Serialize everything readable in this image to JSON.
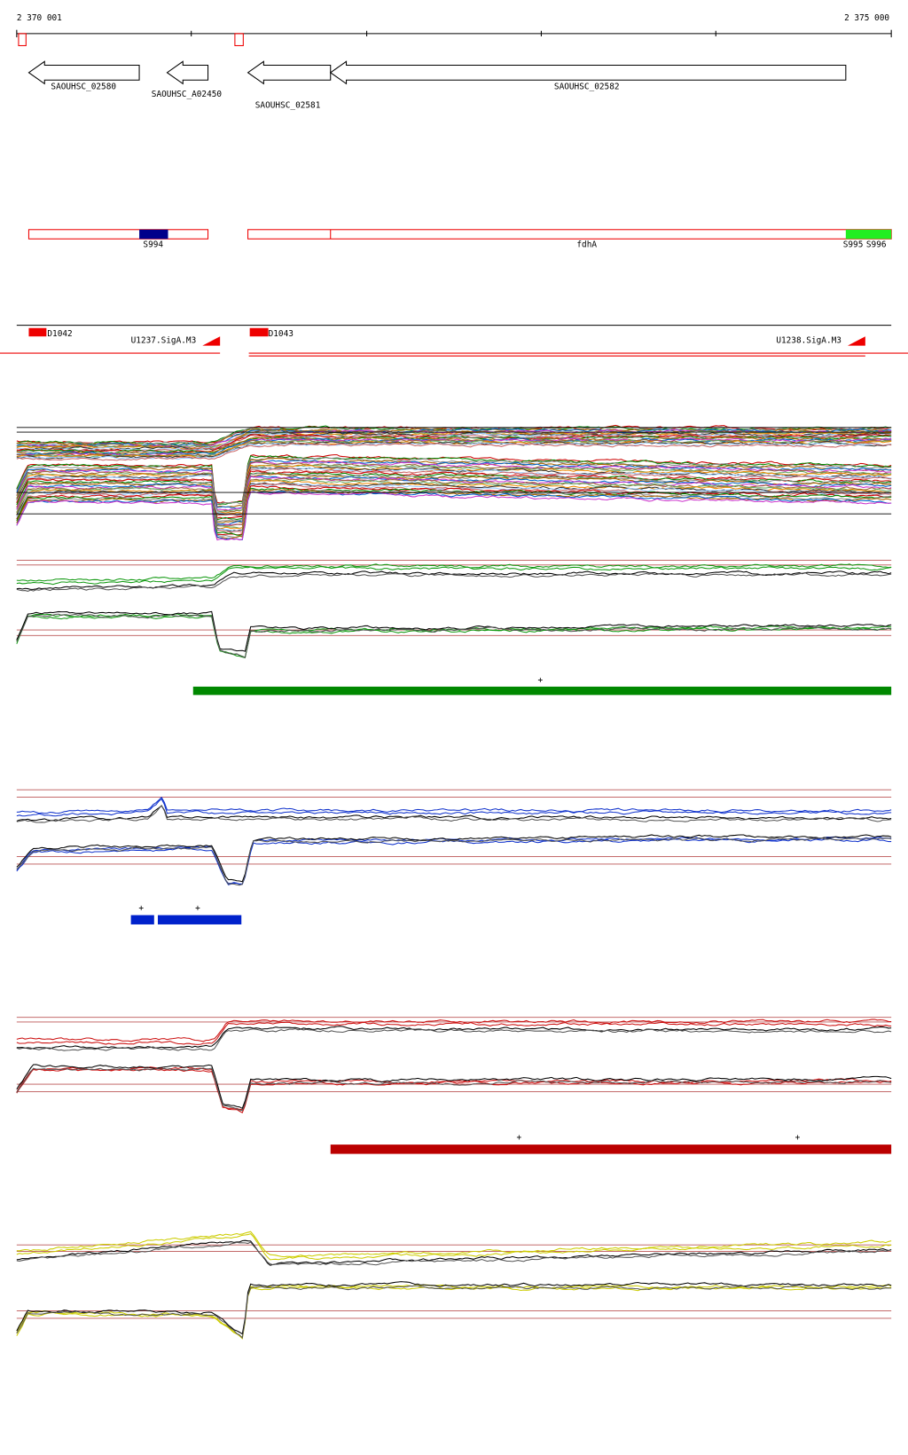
{
  "ruler": {
    "start": "2 370 001",
    "end": "2 375 000"
  },
  "genes": [
    "SAOUHSC_02580",
    "SAOUHSC_A02450",
    "SAOUHSC_02581",
    "SAOUHSC_02582"
  ],
  "features": [
    "S994",
    "fdhA",
    "S995",
    "S996"
  ],
  "regulatory": [
    "D1042",
    "U1237.SigA.M3",
    "D1043",
    "U1238.SigA.M3"
  ],
  "markers": {
    "green": [
      "+"
    ],
    "blue": [
      "+",
      "+"
    ],
    "red": [
      "+",
      "+"
    ]
  }
}
